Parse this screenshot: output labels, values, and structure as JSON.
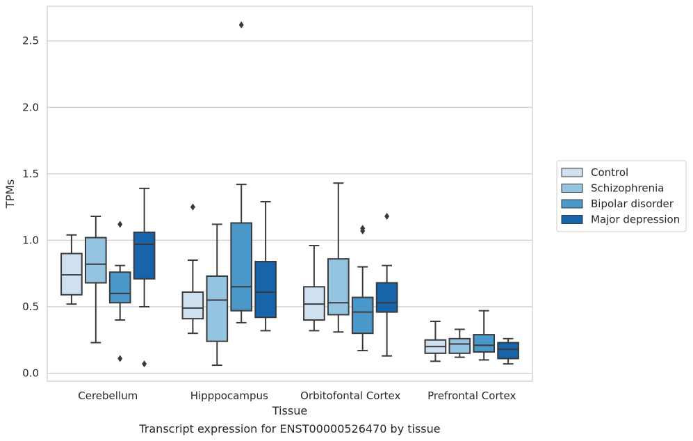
{
  "chart_data": {
    "type": "box",
    "title": "",
    "xlabel": "Tissue",
    "ylabel": "TPMs",
    "caption": "Transcript expression for ENST00000526470 by tissue",
    "ylim": [
      -0.06,
      2.76
    ],
    "yticks": [
      0.0,
      0.5,
      1.0,
      1.5,
      2.0,
      2.5
    ],
    "ytick_labels": [
      "0.0",
      "0.5",
      "1.0",
      "1.5",
      "2.0",
      "2.5"
    ],
    "grid": "horizontal",
    "legend_position": "right",
    "categories": [
      "Cerebellum",
      "Hipppocampus",
      "Orbitofontal Cortex",
      "Prefrontal Cortex"
    ],
    "series": [
      {
        "name": "Control",
        "color": "#cfe0f1",
        "boxes": [
          {
            "whisker_low": 0.52,
            "q1": 0.59,
            "median": 0.74,
            "q3": 0.9,
            "whisker_high": 1.04,
            "outliers": []
          },
          {
            "whisker_low": 0.3,
            "q1": 0.41,
            "median": 0.49,
            "q3": 0.61,
            "whisker_high": 0.85,
            "outliers": [
              1.25
            ]
          },
          {
            "whisker_low": 0.32,
            "q1": 0.4,
            "median": 0.52,
            "q3": 0.65,
            "whisker_high": 0.96,
            "outliers": []
          },
          {
            "whisker_low": 0.09,
            "q1": 0.15,
            "median": 0.2,
            "q3": 0.25,
            "whisker_high": 0.39,
            "outliers": []
          }
        ]
      },
      {
        "name": "Schizophrenia",
        "color": "#94c4df",
        "boxes": [
          {
            "whisker_low": 0.23,
            "q1": 0.68,
            "median": 0.82,
            "q3": 1.02,
            "whisker_high": 1.18,
            "outliers": []
          },
          {
            "whisker_low": 0.06,
            "q1": 0.24,
            "median": 0.55,
            "q3": 0.73,
            "whisker_high": 1.12,
            "outliers": []
          },
          {
            "whisker_low": 0.31,
            "q1": 0.44,
            "median": 0.53,
            "q3": 0.86,
            "whisker_high": 1.43,
            "outliers": []
          },
          {
            "whisker_low": 0.12,
            "q1": 0.15,
            "median": 0.22,
            "q3": 0.26,
            "whisker_high": 0.33,
            "outliers": []
          }
        ]
      },
      {
        "name": "Bipolar disorder",
        "color": "#4a98c9",
        "boxes": [
          {
            "whisker_low": 0.4,
            "q1": 0.53,
            "median": 0.6,
            "q3": 0.76,
            "whisker_high": 0.81,
            "outliers": [
              1.12,
              0.11
            ]
          },
          {
            "whisker_low": 0.38,
            "q1": 0.47,
            "median": 0.65,
            "q3": 1.13,
            "whisker_high": 1.42,
            "outliers": [
              2.62
            ]
          },
          {
            "whisker_low": 0.17,
            "q1": 0.3,
            "median": 0.46,
            "q3": 0.57,
            "whisker_high": 0.8,
            "outliers": [
              1.07,
              1.09
            ]
          },
          {
            "whisker_low": 0.1,
            "q1": 0.16,
            "median": 0.21,
            "q3": 0.29,
            "whisker_high": 0.47,
            "outliers": []
          }
        ]
      },
      {
        "name": "Major depression",
        "color": "#1764ab",
        "boxes": [
          {
            "whisker_low": 0.5,
            "q1": 0.71,
            "median": 0.97,
            "q3": 1.06,
            "whisker_high": 1.39,
            "outliers": [
              0.07
            ]
          },
          {
            "whisker_low": 0.32,
            "q1": 0.42,
            "median": 0.61,
            "q3": 0.84,
            "whisker_high": 1.29,
            "outliers": []
          },
          {
            "whisker_low": 0.13,
            "q1": 0.46,
            "median": 0.53,
            "q3": 0.68,
            "whisker_high": 0.81,
            "outliers": [
              1.18
            ]
          },
          {
            "whisker_low": 0.07,
            "q1": 0.11,
            "median": 0.18,
            "q3": 0.23,
            "whisker_high": 0.26,
            "outliers": []
          }
        ]
      }
    ]
  }
}
